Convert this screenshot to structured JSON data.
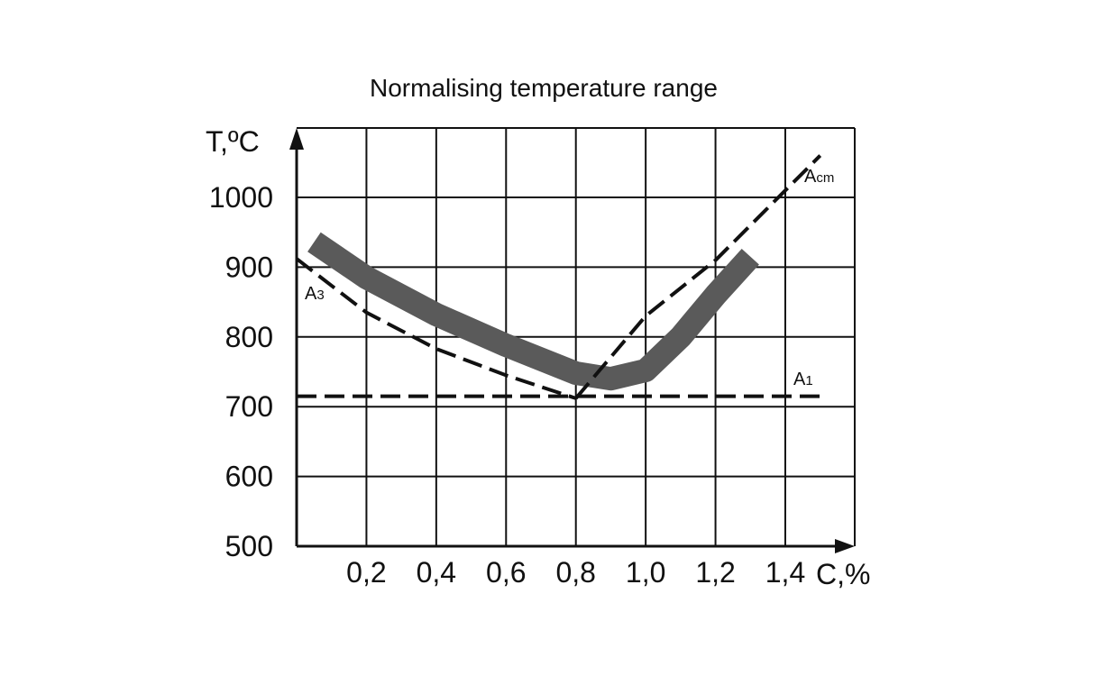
{
  "chart_data": {
    "type": "line",
    "title": "Normalising temperature range",
    "ylabel": "T,ºC",
    "xlabel": "C,%",
    "xlim": [
      0,
      1.6
    ],
    "ylim": [
      500,
      1000
    ],
    "x_ticks": [
      "0,2",
      "0,4",
      "0,6",
      "0,8",
      "1,0",
      "1,2",
      "1,4"
    ],
    "x_tick_values": [
      0.2,
      0.4,
      0.6,
      0.8,
      1.0,
      1.2,
      1.4
    ],
    "y_ticks": [
      "500",
      "600",
      "700",
      "800",
      "900",
      "1000"
    ],
    "y_tick_values": [
      500,
      600,
      700,
      800,
      900,
      1000
    ],
    "grid": true,
    "colors": {
      "band": "#5a5a5a",
      "lines": "#111111",
      "grid": "#111111"
    },
    "series": [
      {
        "name": "A3",
        "label_main": "A",
        "label_sub": "3",
        "style": "dashed",
        "x": [
          0.0,
          0.2,
          0.4,
          0.6,
          0.8
        ],
        "y": [
          912,
          835,
          783,
          745,
          712
        ]
      },
      {
        "name": "Acm",
        "label_main": "A",
        "label_sub": "cm",
        "style": "dashed",
        "x": [
          0.8,
          1.0,
          1.2,
          1.5
        ],
        "y": [
          712,
          830,
          910,
          1060
        ]
      },
      {
        "name": "A1",
        "label_main": "A",
        "label_sub": "1",
        "style": "dashed",
        "x": [
          0.0,
          1.5
        ],
        "y": [
          715,
          715
        ]
      }
    ],
    "band": {
      "x": [
        0.05,
        0.2,
        0.4,
        0.6,
        0.8,
        0.9,
        1.0,
        1.1,
        1.2,
        1.3
      ],
      "y": [
        936,
        885,
        832,
        788,
        748,
        740,
        752,
        800,
        860,
        915
      ]
    }
  }
}
